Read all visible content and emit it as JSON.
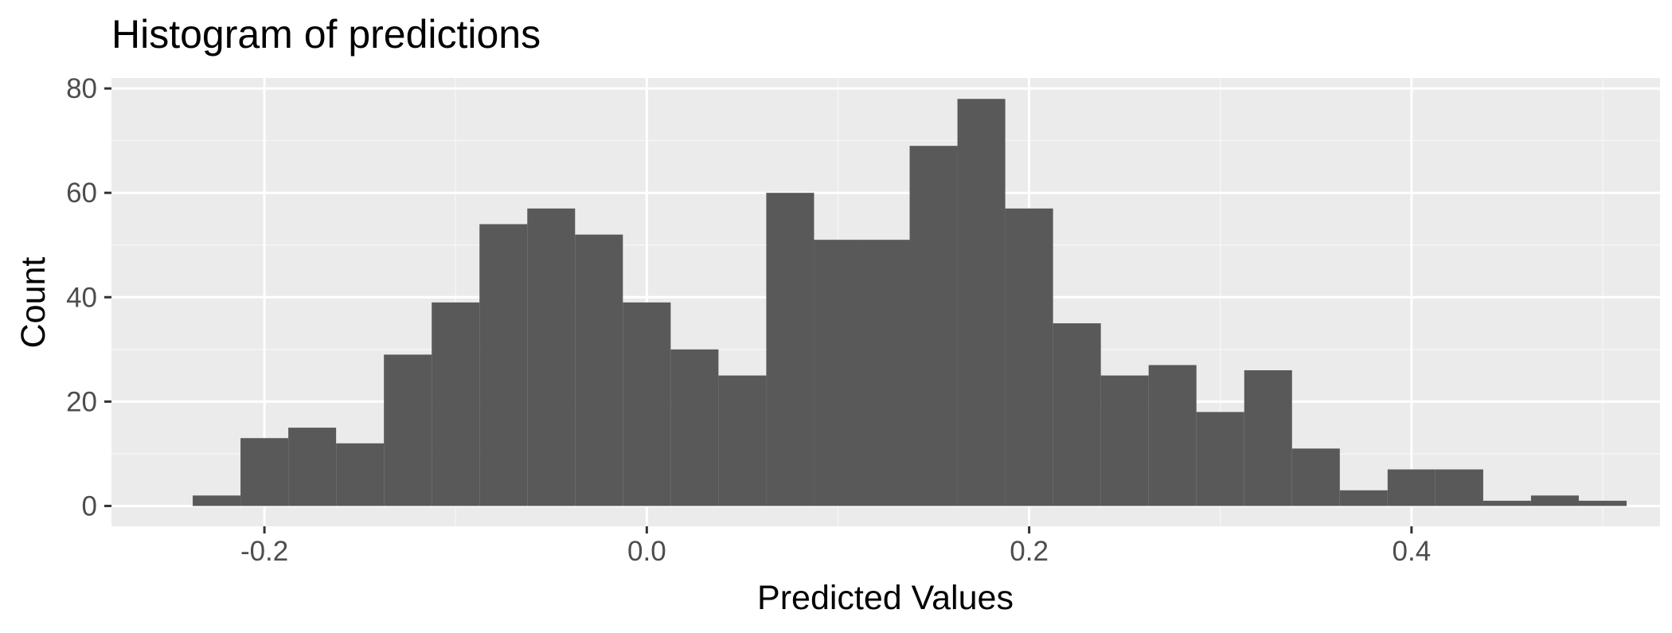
{
  "chart_data": {
    "type": "bar",
    "subtype": "histogram",
    "title": "Histogram of predictions",
    "xlabel": "Predicted Values",
    "ylabel": "Count",
    "xlim": [
      -0.28,
      0.53
    ],
    "ylim": [
      -3.9,
      82
    ],
    "x_ticks": [
      -0.2,
      0.0,
      0.2,
      0.4
    ],
    "x_tick_labels": [
      "-0.2",
      "0.0",
      "0.2",
      "0.4"
    ],
    "y_ticks": [
      0,
      20,
      40,
      60,
      80
    ],
    "y_tick_labels": [
      "0",
      "20",
      "40",
      "60",
      "80"
    ],
    "bin_width": 0.025,
    "bins": [
      {
        "x0": -0.2375,
        "x1": -0.2125,
        "count": 2
      },
      {
        "x0": -0.2125,
        "x1": -0.1875,
        "count": 13
      },
      {
        "x0": -0.1875,
        "x1": -0.1625,
        "count": 15
      },
      {
        "x0": -0.1625,
        "x1": -0.1375,
        "count": 12
      },
      {
        "x0": -0.1375,
        "x1": -0.1125,
        "count": 29
      },
      {
        "x0": -0.1125,
        "x1": -0.0875,
        "count": 39
      },
      {
        "x0": -0.0875,
        "x1": -0.0625,
        "count": 54
      },
      {
        "x0": -0.0625,
        "x1": -0.0375,
        "count": 57
      },
      {
        "x0": -0.0375,
        "x1": -0.0125,
        "count": 52
      },
      {
        "x0": -0.0125,
        "x1": 0.0125,
        "count": 39
      },
      {
        "x0": 0.0125,
        "x1": 0.0375,
        "count": 30
      },
      {
        "x0": 0.0375,
        "x1": 0.0625,
        "count": 25
      },
      {
        "x0": 0.0625,
        "x1": 0.0875,
        "count": 60
      },
      {
        "x0": 0.0875,
        "x1": 0.1125,
        "count": 51
      },
      {
        "x0": 0.1125,
        "x1": 0.1375,
        "count": 51
      },
      {
        "x0": 0.1375,
        "x1": 0.1625,
        "count": 69
      },
      {
        "x0": 0.1625,
        "x1": 0.1875,
        "count": 78
      },
      {
        "x0": 0.1875,
        "x1": 0.2125,
        "count": 57
      },
      {
        "x0": 0.2125,
        "x1": 0.2375,
        "count": 35
      },
      {
        "x0": 0.2375,
        "x1": 0.2625,
        "count": 25
      },
      {
        "x0": 0.2625,
        "x1": 0.2875,
        "count": 27
      },
      {
        "x0": 0.2875,
        "x1": 0.3125,
        "count": 18
      },
      {
        "x0": 0.3125,
        "x1": 0.3375,
        "count": 26
      },
      {
        "x0": 0.3375,
        "x1": 0.3625,
        "count": 11
      },
      {
        "x0": 0.3625,
        "x1": 0.3875,
        "count": 3
      },
      {
        "x0": 0.3875,
        "x1": 0.4125,
        "count": 7
      },
      {
        "x0": 0.4125,
        "x1": 0.4375,
        "count": 7
      },
      {
        "x0": 0.4375,
        "x1": 0.4625,
        "count": 1
      },
      {
        "x0": 0.4625,
        "x1": 0.4875,
        "count": 2
      },
      {
        "x0": 0.4875,
        "x1": 0.5125,
        "count": 1
      }
    ],
    "grid": true,
    "colors": {
      "panel_background": "#ebebeb",
      "grid_major": "#ffffff",
      "grid_minor": "#f5f5f5",
      "bar_fill": "#595959",
      "tick_label": "#4d4d4d",
      "tick_mark": "#333333"
    }
  }
}
